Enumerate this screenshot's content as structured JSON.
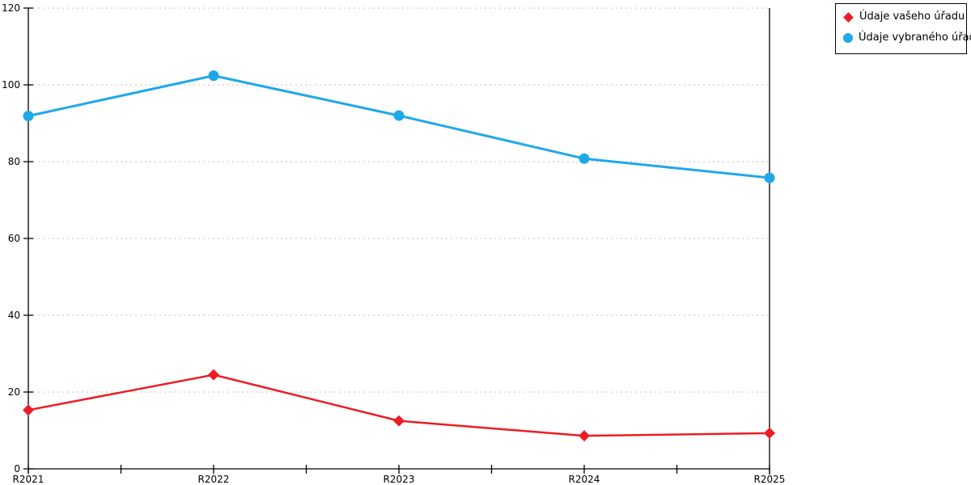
{
  "chart_data": {
    "type": "line",
    "categories": [
      "R2021",
      "R2022",
      "R2023",
      "R2024",
      "R2025"
    ],
    "series": [
      {
        "name": "Údaje vašeho úřadu",
        "marker": "diamond",
        "color": "#ed1c24",
        "line_width": 2.5,
        "values": [
          15.3,
          24.5,
          12.5,
          8.6,
          9.3
        ]
      },
      {
        "name": "Údaje vybraného úřadu",
        "marker": "circle",
        "color": "#1fa8e8",
        "line_width": 3,
        "values": [
          91.9,
          102.4,
          92.0,
          80.8,
          75.8
        ]
      }
    ],
    "title": "",
    "xlabel": "",
    "ylabel": "",
    "ylim": [
      0,
      120
    ],
    "yticks": [
      0,
      20,
      40,
      60,
      80,
      100,
      120
    ],
    "grid": "horizontal-dotted",
    "grid_color": "#bfbfbf",
    "axis_color": "#000000",
    "legend_position": "top-right"
  }
}
